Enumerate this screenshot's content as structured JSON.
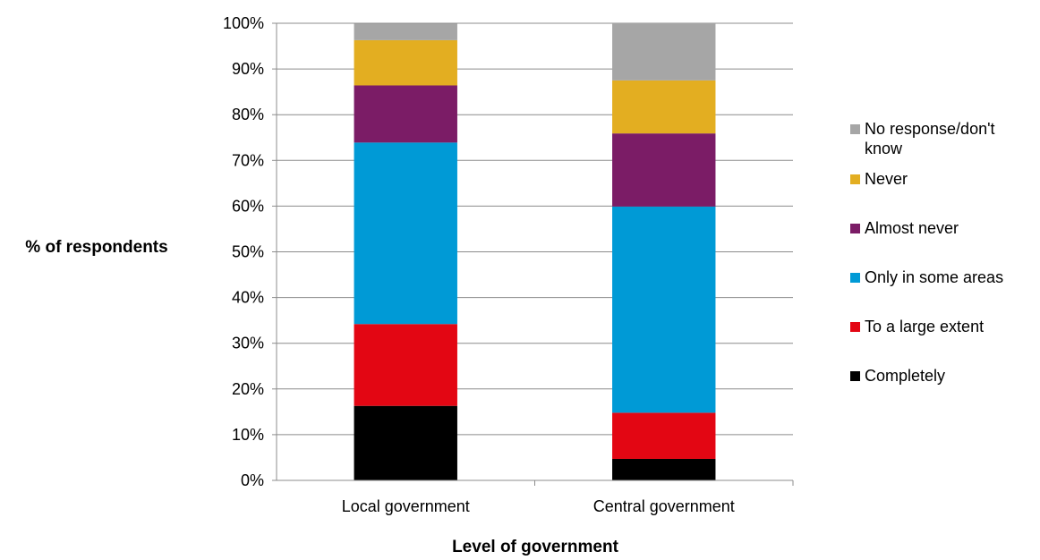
{
  "chart_data": {
    "type": "bar",
    "stacked": true,
    "percent_stacked": true,
    "title": "",
    "xlabel": "Level of government",
    "ylabel": "% of respondents",
    "categories": [
      "Local government",
      "Central government"
    ],
    "ylim": [
      0,
      100
    ],
    "yticks": [
      "0%",
      "10%",
      "20%",
      "30%",
      "40%",
      "50%",
      "60%",
      "70%",
      "80%",
      "90%",
      "100%"
    ],
    "grid": true,
    "legend_position": "right",
    "series": [
      {
        "name": "Completely",
        "color": "#000000",
        "values": [
          16.3,
          4.7
        ]
      },
      {
        "name": "To a large extent",
        "color": "#e30613",
        "values": [
          17.9,
          10.1
        ]
      },
      {
        "name": "Only in some areas",
        "color": "#009ad6",
        "values": [
          39.7,
          45.1
        ]
      },
      {
        "name": "Almost never",
        "color": "#7b1c66",
        "values": [
          12.5,
          16.0
        ]
      },
      {
        "name": "Never",
        "color": "#e3ae21",
        "values": [
          9.9,
          11.6
        ]
      },
      {
        "name": "No response/don't know",
        "color": "#a6a6a6",
        "values": [
          3.6,
          12.5
        ]
      }
    ],
    "legend_order": [
      {
        "lines": [
          "No response/don't",
          "know"
        ],
        "series": 5
      },
      {
        "lines": [
          "Never"
        ],
        "series": 4
      },
      {
        "lines": [
          "Almost never"
        ],
        "series": 3
      },
      {
        "lines": [
          "Only in some areas"
        ],
        "series": 2
      },
      {
        "lines": [
          "To a large extent"
        ],
        "series": 1
      },
      {
        "lines": [
          "Completely"
        ],
        "series": 0
      }
    ]
  }
}
